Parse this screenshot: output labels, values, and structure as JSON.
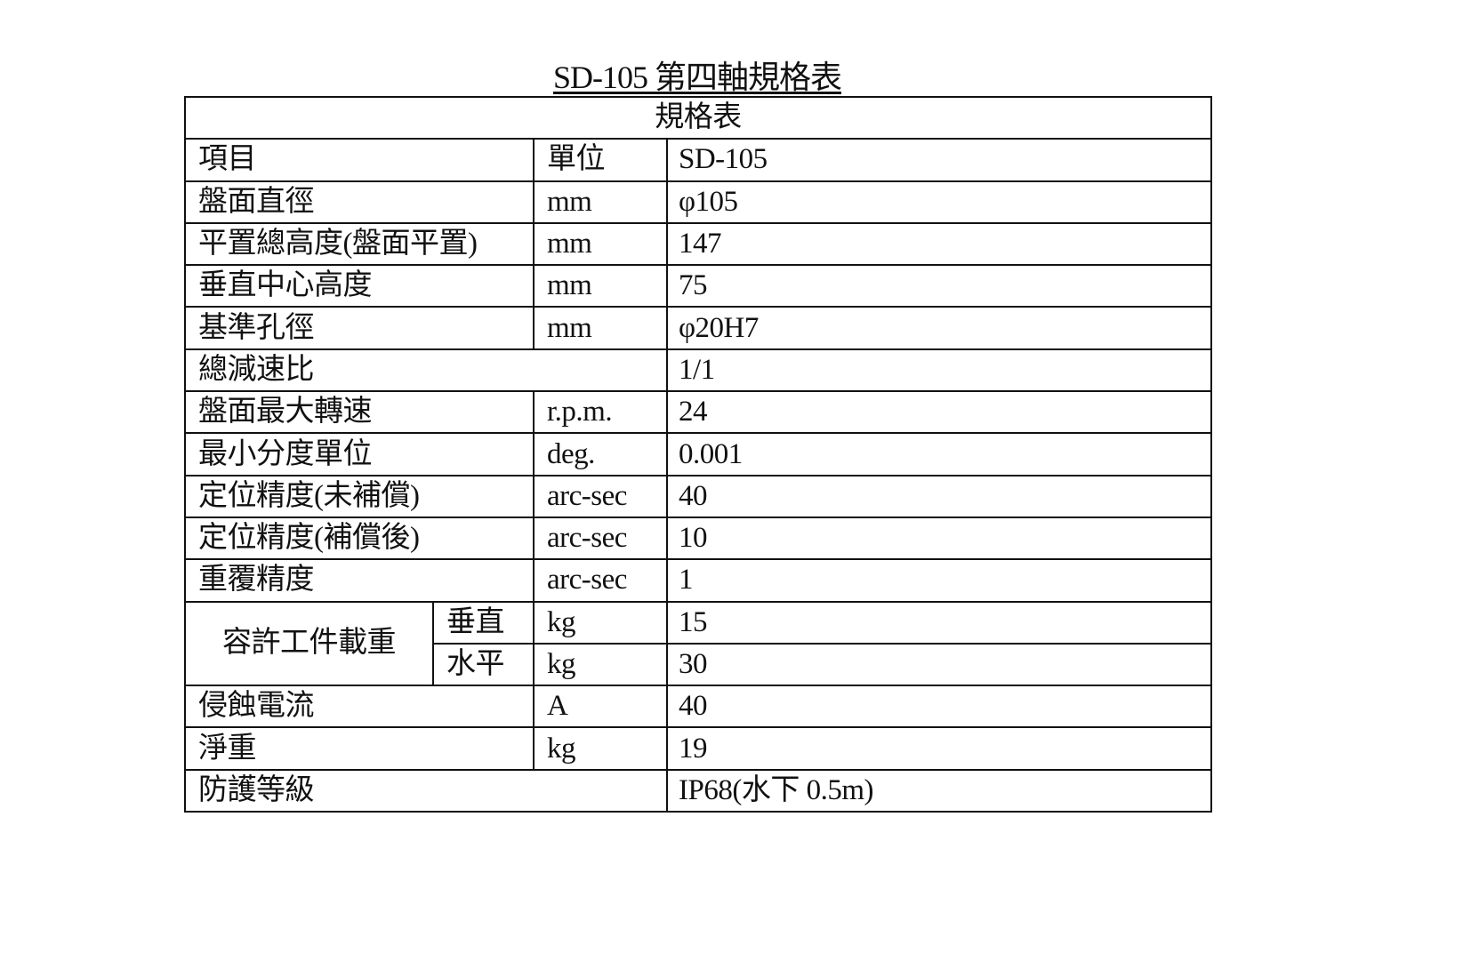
{
  "document": {
    "title": "SD-105  第四軸規格表",
    "table_caption": "規格表",
    "header": {
      "item": "項目",
      "unit": "單位",
      "model": "SD-105"
    },
    "rows": [
      {
        "item": "盤面直徑",
        "unit": "mm",
        "value": "φ105"
      },
      {
        "item": "平置總高度(盤面平置)",
        "unit": "mm",
        "value": "147"
      },
      {
        "item": "垂直中心高度",
        "unit": "mm",
        "value": "75"
      },
      {
        "item": "基準孔徑",
        "unit": "mm",
        "value": "φ20H7"
      },
      {
        "item": "總減速比",
        "unit": "",
        "value": "1/1"
      },
      {
        "item": "盤面最大轉速",
        "unit": "r.p.m.",
        "value": "24"
      },
      {
        "item": "最小分度單位",
        "unit": "deg.",
        "value": "0.001"
      },
      {
        "item": "定位精度(未補償)",
        "unit": "arc-sec",
        "value": "40"
      },
      {
        "item": "定位精度(補償後)",
        "unit": "arc-sec",
        "value": "10"
      },
      {
        "item": "重覆精度",
        "unit": "arc-sec",
        "value": "1"
      }
    ],
    "load": {
      "item": "容許工件載重",
      "vertical": {
        "label": "垂直",
        "unit": "kg",
        "value": "15"
      },
      "horizontal": {
        "label": "水平",
        "unit": "kg",
        "value": "30"
      }
    },
    "rows2": [
      {
        "item": "侵蝕電流",
        "unit": "A",
        "value": "40"
      },
      {
        "item": "淨重",
        "unit": "kg",
        "value": "19"
      },
      {
        "item": "防護等級",
        "unit": "",
        "value": "IP68(水下 0.5m)"
      }
    ]
  }
}
